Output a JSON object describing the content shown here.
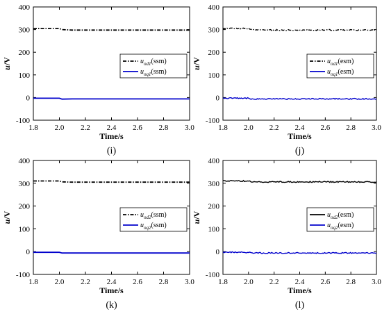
{
  "figure": {
    "panels": [
      {
        "label": "(i)",
        "legend": [
          {
            "sym": "u",
            "sub": "od1",
            "suf": "(ssm)"
          },
          {
            "sym": "u",
            "sub": "oq1",
            "suf": "(ssm)"
          }
        ]
      },
      {
        "label": "(j)",
        "legend": [
          {
            "sym": "u",
            "sub": "od1",
            "suf": "(esm)"
          },
          {
            "sym": "u",
            "sub": "oq1",
            "suf": "(esm)"
          }
        ]
      },
      {
        "label": "(k)",
        "legend": [
          {
            "sym": "u",
            "sub": "od2",
            "suf": "(ssm)"
          },
          {
            "sym": "u",
            "sub": "oq2",
            "suf": "(ssm)"
          }
        ]
      },
      {
        "label": "(l)",
        "legend": [
          {
            "sym": "u",
            "sub": "od2",
            "suf": "(esm)"
          },
          {
            "sym": "u",
            "sub": "oq2",
            "suf": "(esm)"
          }
        ]
      }
    ]
  },
  "chart_data": [
    {
      "type": "line",
      "xlabel": "Time/s",
      "ylabel": "u/V",
      "xlim": [
        1.8,
        3.0
      ],
      "ylim": [
        -100,
        400
      ],
      "xticks": [
        "1.8",
        "2.0",
        "2.2",
        "2.4",
        "2.6",
        "2.8",
        "3.0"
      ],
      "yticks": [
        "400",
        "300",
        "200",
        "100",
        "0",
        "-100"
      ],
      "grid": false,
      "legend_position": "center-right",
      "series": [
        {
          "name": "u_od1(ssm)",
          "color": "#000000",
          "style": "dash-dot",
          "x": [
            1.8,
            2.0,
            2.02,
            2.1,
            3.0
          ],
          "y": [
            305,
            305,
            300,
            298,
            298
          ]
        },
        {
          "name": "u_oq1(ssm)",
          "color": "#0000cc",
          "style": "solid",
          "x": [
            1.8,
            2.0,
            2.02,
            2.1,
            3.0
          ],
          "y": [
            -3,
            -3,
            -7,
            -6,
            -6
          ]
        }
      ]
    },
    {
      "type": "line",
      "xlabel": "Time/s",
      "ylabel": "u/V",
      "xlim": [
        1.8,
        3.0
      ],
      "ylim": [
        -100,
        400
      ],
      "xticks": [
        "1.8",
        "2.0",
        "2.2",
        "2.4",
        "2.6",
        "2.8",
        "3.0"
      ],
      "yticks": [
        "400",
        "300",
        "200",
        "100",
        "0",
        "-100"
      ],
      "grid": false,
      "legend_position": "center-right",
      "series": [
        {
          "name": "u_od1(esm)",
          "color": "#000000",
          "style": "dash-dot",
          "x": [
            1.8,
            2.0,
            2.02,
            2.1,
            3.0
          ],
          "y": [
            305,
            305,
            300,
            298,
            298
          ]
        },
        {
          "name": "u_oq1(esm)",
          "color": "#0000cc",
          "style": "solid",
          "x": [
            1.8,
            2.0,
            2.02,
            2.1,
            3.0
          ],
          "y": [
            -3,
            -3,
            -7,
            -6,
            -6
          ]
        }
      ]
    },
    {
      "type": "line",
      "xlabel": "Time/s",
      "ylabel": "u/V",
      "xlim": [
        1.8,
        3.0
      ],
      "ylim": [
        -100,
        400
      ],
      "xticks": [
        "1.8",
        "2.0",
        "2.2",
        "2.4",
        "2.6",
        "2.8",
        "3.0"
      ],
      "yticks": [
        "400",
        "300",
        "200",
        "100",
        "0",
        "-100"
      ],
      "grid": false,
      "legend_position": "center-right",
      "series": [
        {
          "name": "u_od2(ssm)",
          "color": "#000000",
          "style": "dash-dot",
          "x": [
            1.8,
            2.0,
            2.02,
            2.1,
            3.0
          ],
          "y": [
            310,
            310,
            306,
            305,
            305
          ]
        },
        {
          "name": "u_oq2(ssm)",
          "color": "#0000cc",
          "style": "solid",
          "x": [
            1.8,
            2.0,
            2.02,
            2.1,
            3.0
          ],
          "y": [
            -3,
            -3,
            -6,
            -6,
            -6
          ]
        }
      ]
    },
    {
      "type": "line",
      "xlabel": "Time/s",
      "ylabel": "u/V",
      "xlim": [
        1.8,
        3.0
      ],
      "ylim": [
        -100,
        400
      ],
      "xticks": [
        "1.8",
        "2.0",
        "2.2",
        "2.4",
        "2.6",
        "2.8",
        "3.0"
      ],
      "yticks": [
        "400",
        "300",
        "200",
        "100",
        "0",
        "-100"
      ],
      "grid": false,
      "legend_position": "center-right",
      "series": [
        {
          "name": "u_od2(esm)",
          "color": "#000000",
          "style": "solid",
          "x": [
            1.8,
            2.0,
            2.02,
            2.1,
            3.0
          ],
          "y": [
            310,
            310,
            307,
            306,
            306
          ]
        },
        {
          "name": "u_oq2(esm)",
          "color": "#0000cc",
          "style": "solid",
          "x": [
            1.8,
            2.0,
            2.02,
            2.1,
            3.0
          ],
          "y": [
            -3,
            -3,
            -6,
            -6,
            -6
          ]
        }
      ]
    }
  ]
}
